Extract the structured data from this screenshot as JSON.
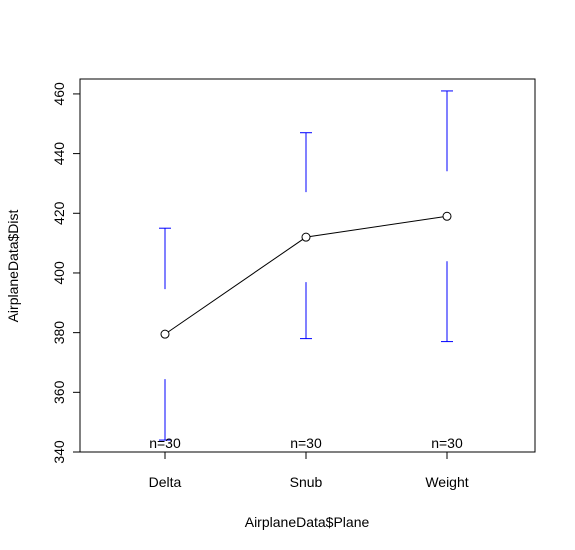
{
  "chart_data": {
    "type": "line",
    "title": "",
    "xlabel": "AirplaneData$Plane",
    "ylabel": "AirplaneData$Dist",
    "categories": [
      "Delta",
      "Snub",
      "Weight"
    ],
    "ylim": [
      340,
      465
    ],
    "yticks": [
      340,
      360,
      380,
      400,
      420,
      440,
      460
    ],
    "grid": false,
    "legend": "none",
    "series": [
      {
        "values": [
          379.5,
          412,
          419
        ],
        "lower": [
          344,
          378,
          377
        ],
        "upper": [
          415,
          447,
          461
        ],
        "n_labels": [
          "n=30",
          "n=30",
          "n=30"
        ]
      }
    ],
    "colors": {
      "line": "#000000",
      "error_bars": "#0000ff",
      "axes": "#000000"
    }
  }
}
